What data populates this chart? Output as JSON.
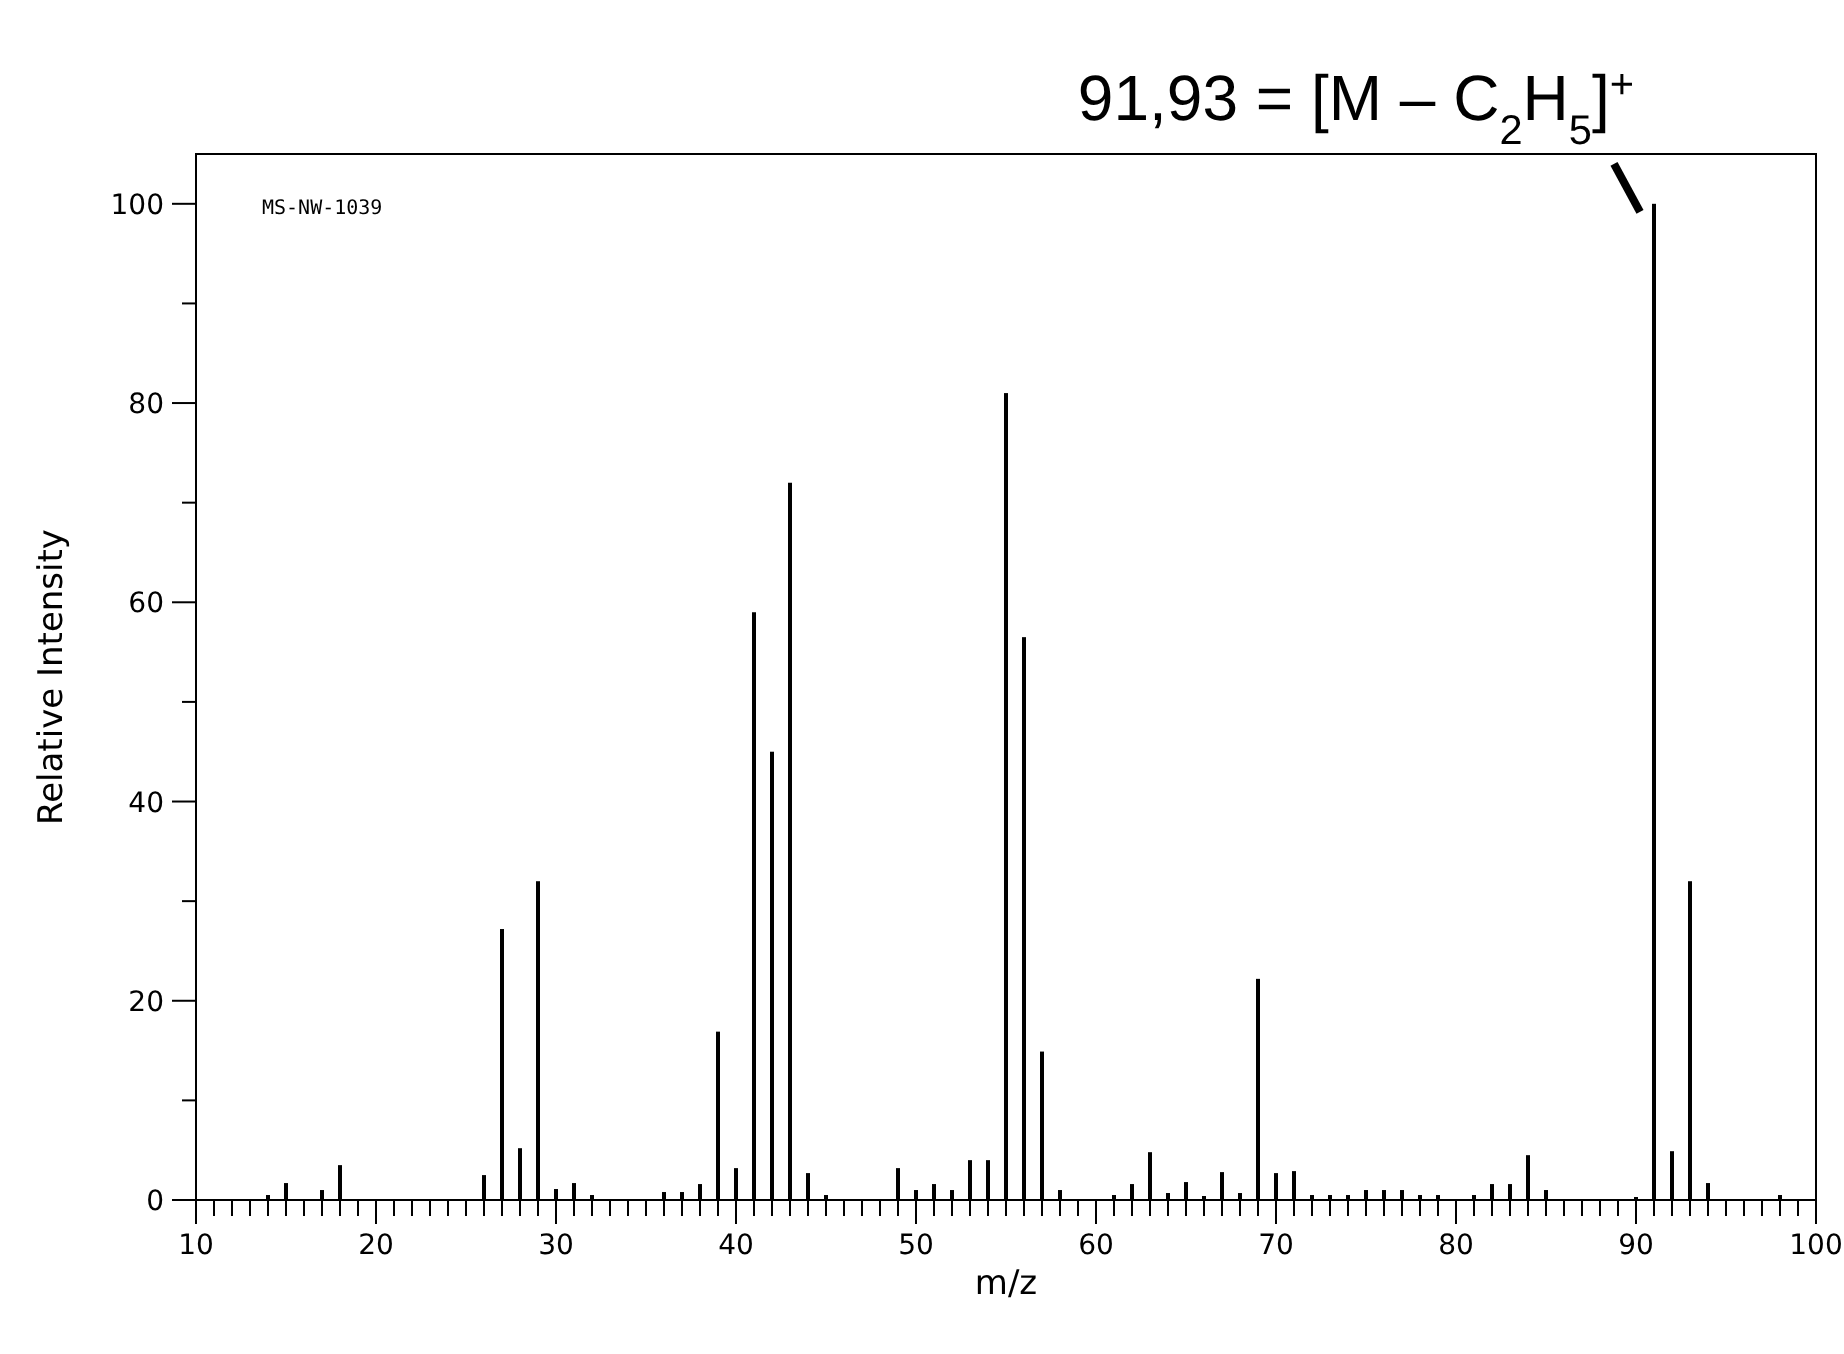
{
  "chart_data": {
    "type": "bar",
    "xlabel": "m/z",
    "ylabel": "Relative Intensity",
    "annotations": [
      "MS-NW-1039",
      {
        "text": "91,93 = [M – C$_{2}$H$_{5}$]$^{+}$",
        "x": 91,
        "y": 100
      }
    ],
    "x": [
      14,
      15,
      17,
      18,
      26,
      27,
      28,
      29,
      30,
      31,
      32,
      36,
      37,
      38,
      39,
      40,
      41,
      42,
      43,
      44,
      45,
      49,
      50,
      51,
      52,
      53,
      54,
      55,
      56,
      57,
      58,
      61,
      62,
      63,
      64,
      65,
      66,
      67,
      68,
      69,
      70,
      71,
      72,
      73,
      74,
      75,
      76,
      77,
      78,
      79,
      81,
      82,
      83,
      84,
      85,
      90,
      91,
      92,
      93,
      94,
      98
    ],
    "values": [
      0.5,
      1.7,
      1,
      3.5,
      2.5,
      27.2,
      5.2,
      32,
      1.1,
      1.7,
      0.5,
      0.8,
      0.8,
      1.6,
      16.9,
      3.2,
      59,
      45,
      72,
      2.7,
      0.5,
      3.2,
      1,
      1.6,
      1,
      4,
      4,
      81,
      56.5,
      14.9,
      1,
      0.5,
      1.6,
      4.8,
      0.7,
      1.8,
      0.4,
      2.8,
      0.7,
      22.2,
      2.7,
      2.9,
      0.5,
      0.5,
      0.5,
      1,
      1,
      1,
      0.5,
      0.5,
      0.5,
      1.6,
      1.6,
      4.5,
      1,
      0.3,
      100,
      4.9,
      32,
      1.7,
      0.5
    ],
    "color": "#000000",
    "xlim": [
      10,
      100
    ],
    "xticks": [
      10,
      {
        "value": 11,
        "label": null
      },
      {
        "value": 12,
        "label": null
      },
      {
        "value": 13,
        "label": null
      },
      {
        "value": 14,
        "label": null
      },
      {
        "value": 15,
        "label": null
      },
      {
        "value": 16,
        "label": null
      },
      {
        "value": 17,
        "label": null
      },
      {
        "value": 18,
        "label": null
      },
      {
        "value": 19,
        "label": null
      },
      20,
      {
        "value": 21,
        "label": null
      },
      {
        "value": 22,
        "label": null
      },
      {
        "value": 23,
        "label": null
      },
      {
        "value": 24,
        "label": null
      },
      {
        "value": 25,
        "label": null
      },
      {
        "value": 26,
        "label": null
      },
      {
        "value": 27,
        "label": null
      },
      {
        "value": 28,
        "label": null
      },
      {
        "value": 29,
        "label": null
      },
      30,
      {
        "value": 31,
        "label": null
      },
      {
        "value": 32,
        "label": null
      },
      {
        "value": 33,
        "label": null
      },
      {
        "value": 34,
        "label": null
      },
      {
        "value": 35,
        "label": null
      },
      {
        "value": 36,
        "label": null
      },
      {
        "value": 37,
        "label": null
      },
      {
        "value": 38,
        "label": null
      },
      {
        "value": 39,
        "label": null
      },
      40,
      {
        "value": 41,
        "label": null
      },
      {
        "value": 42,
        "label": null
      },
      {
        "value": 43,
        "label": null
      },
      {
        "value": 44,
        "label": null
      },
      {
        "value": 45,
        "label": null
      },
      {
        "value": 46,
        "label": null
      },
      {
        "value": 47,
        "label": null
      },
      {
        "value": 48,
        "label": null
      },
      {
        "value": 49,
        "label": null
      },
      50,
      {
        "value": 51,
        "label": null
      },
      {
        "value": 52,
        "label": null
      },
      {
        "value": 53,
        "label": null
      },
      {
        "value": 54,
        "label": null
      },
      {
        "value": 55,
        "label": null
      },
      {
        "value": 56,
        "label": null
      },
      {
        "value": 57,
        "label": null
      },
      {
        "value": 58,
        "label": null
      },
      {
        "value": 59,
        "label": null
      },
      60,
      {
        "value": 61,
        "label": null
      },
      {
        "value": 62,
        "label": null
      },
      {
        "value": 63,
        "label": null
      },
      {
        "value": 64,
        "label": null
      },
      {
        "value": 65,
        "label": null
      },
      {
        "value": 66,
        "label": null
      },
      {
        "value": 67,
        "label": null
      },
      {
        "value": 68,
        "label": null
      },
      {
        "value": 69,
        "label": null
      },
      70,
      {
        "value": 71,
        "label": null
      },
      {
        "value": 72,
        "label": null
      },
      {
        "value": 73,
        "label": null
      },
      {
        "value": 74,
        "label": null
      },
      {
        "value": 75,
        "label": null
      },
      {
        "value": 76,
        "label": null
      },
      {
        "value": 77,
        "label": null
      },
      {
        "value": 78,
        "label": null
      },
      {
        "value": 79,
        "label": null
      },
      80,
      {
        "value": 81,
        "label": null
      },
      {
        "value": 82,
        "label": null
      },
      {
        "value": 83,
        "label": null
      },
      {
        "value": 84,
        "label": null
      },
      {
        "value": 85,
        "label": null
      },
      {
        "value": 86,
        "label": null
      },
      {
        "value": 87,
        "label": null
      },
      {
        "value": 88,
        "label": null
      },
      {
        "value": 89,
        "label": null
      },
      90,
      {
        "value": 91,
        "label": null
      },
      {
        "value": 92,
        "label": null
      },
      {
        "value": 93,
        "label": null
      },
      {
        "value": 94,
        "label": null
      },
      {
        "value": 95,
        "label": null
      },
      {
        "value": 96,
        "label": null
      },
      {
        "value": 97,
        "label": null
      },
      {
        "value": 98,
        "label": null
      },
      {
        "value": 99,
        "label": null
      },
      100
    ],
    "ylim": [
      0,
      105
    ],
    "yticks": [
      0,
      {
        "value": 10,
        "label": null
      },
      20,
      {
        "value": 30,
        "label": null
      },
      40,
      {
        "value": 50,
        "label": null
      },
      60,
      {
        "value": 70,
        "label": null
      },
      80,
      {
        "value": 90,
        "label": null
      },
      100
    ],
    "grid": false
  }
}
